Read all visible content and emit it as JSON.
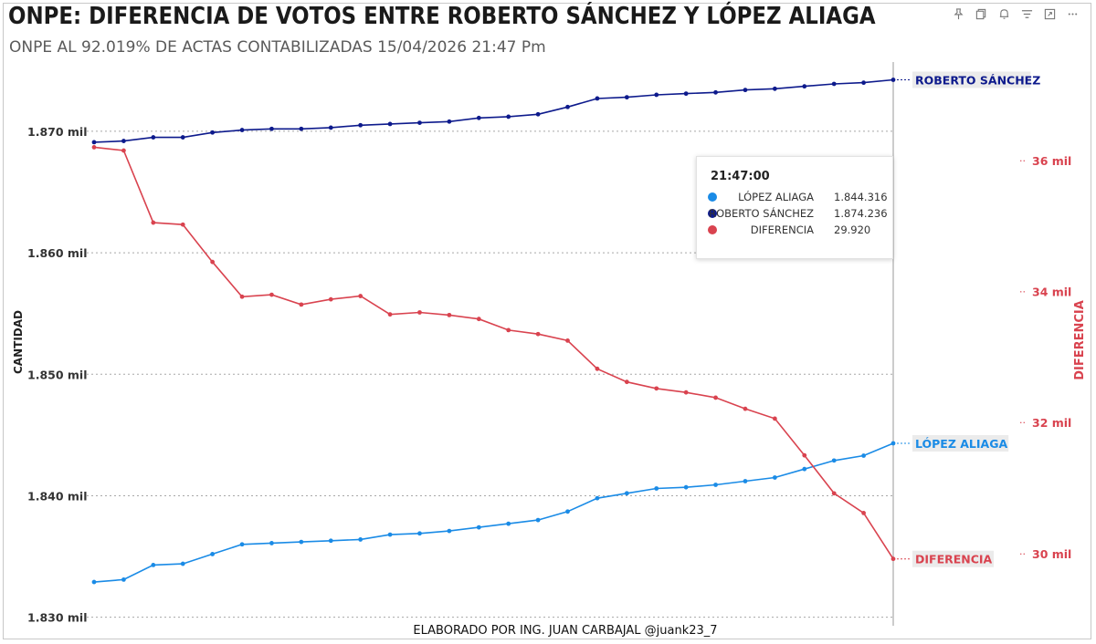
{
  "header": {
    "title": "ONPE: DIFERENCIA DE VOTOS ENTRE ROBERTO SÁNCHEZ Y LÓPEZ ALIAGA",
    "subtitle": "ONPE AL 92.019% DE ACTAS CONTABILIZADAS 15/04/2026 21:47 Pm"
  },
  "toolbar": {
    "icons": [
      "pin-icon",
      "copy-icon",
      "bell-icon",
      "filter-icon",
      "expand-icon",
      "more-icon"
    ]
  },
  "tooltip": {
    "time": "21:47:00",
    "rows": [
      {
        "name": "LÓPEZ ALIAGA",
        "value": "1.844.316",
        "color": "#1a8be6"
      },
      {
        "name": "ROBERTO SÁNCHEZ",
        "value": "1.874.236",
        "color": "#0d1a8c"
      },
      {
        "name": "DIFERENCIA",
        "value": "29.920",
        "color": "#d9434f"
      }
    ]
  },
  "footer": "ELABORADO POR ING. JUAN CARBAJAL @juank23_7",
  "chart_data": {
    "type": "line",
    "title": "ONPE: DIFERENCIA DE VOTOS ENTRE ROBERTO SÁNCHEZ Y LÓPEZ ALIAGA",
    "ylabel": "CANTIDAD",
    "ylabel_right": "DIFERENCIA",
    "ylim": [
      1829300,
      1875700
    ],
    "yticks": [
      1830000,
      1840000,
      1850000,
      1860000,
      1870000
    ],
    "ytick_labels": [
      "1.830 mil",
      "1.840 mil",
      "1.850 mil",
      "1.860 mil",
      "1.870 mil"
    ],
    "ylim_right": [
      28900,
      37500
    ],
    "yticks_right": [
      30000,
      32000,
      34000,
      36000
    ],
    "ytick_labels_right": [
      "30 mil",
      "32 mil",
      "34 mil",
      "36 mil"
    ],
    "n_points": 28,
    "series": [
      {
        "name": "ROBERTO SÁNCHEZ",
        "label": "ROBERTO SÁNCHEZ",
        "axis": "left",
        "color": "#0d1a8c",
        "values": [
          1869100,
          1869200,
          1869500,
          1869500,
          1869900,
          1870100,
          1870200,
          1870200,
          1870300,
          1870500,
          1870600,
          1870700,
          1870800,
          1871100,
          1871200,
          1871400,
          1872000,
          1872700,
          1872800,
          1873000,
          1873100,
          1873200,
          1873400,
          1873500,
          1873700,
          1873900,
          1874000,
          1874236
        ]
      },
      {
        "name": "LÓPEZ ALIAGA",
        "label": "LÓPEZ ALIAGA",
        "axis": "left",
        "color": "#1a8be6",
        "values": [
          1832900,
          1833100,
          1834300,
          1834400,
          1835200,
          1836000,
          1836100,
          1836200,
          1836300,
          1836400,
          1836800,
          1836900,
          1837100,
          1837400,
          1837700,
          1838000,
          1838700,
          1839800,
          1840200,
          1840600,
          1840700,
          1840900,
          1841200,
          1841500,
          1842200,
          1842900,
          1843300,
          1844316
        ]
      },
      {
        "name": "DIFERENCIA",
        "label": "DIFERENCIA",
        "axis": "right",
        "color": "#d9434f",
        "values": [
          36200,
          36150,
          35050,
          35020,
          34450,
          33920,
          33950,
          33800,
          33880,
          33930,
          33650,
          33680,
          33640,
          33580,
          33410,
          33350,
          33250,
          32820,
          32620,
          32520,
          32460,
          32380,
          32210,
          32060,
          31500,
          30920,
          30620,
          29920
        ]
      }
    ]
  }
}
